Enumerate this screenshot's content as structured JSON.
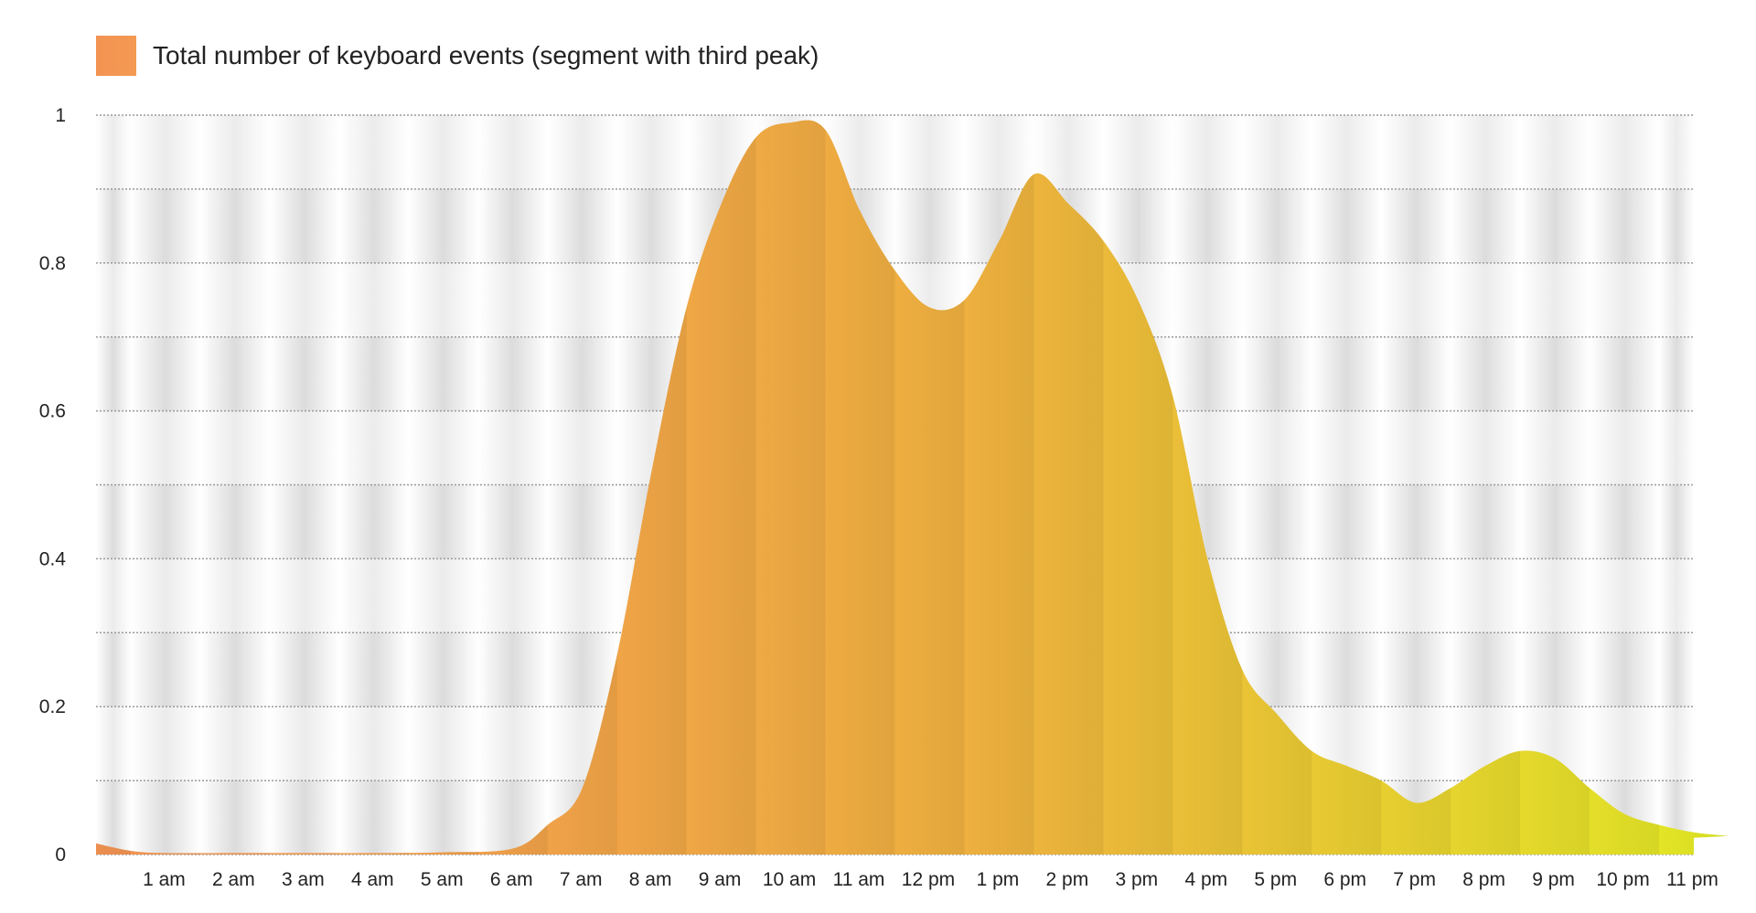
{
  "legend": {
    "label": "Total number of keyboard events (segment with third peak)",
    "swatch_color": "#f39a53"
  },
  "colors": {
    "gradient_start": "#f39353",
    "gradient_mid": "#eeb13e",
    "gradient_end": "#e2e924",
    "stripe_dark": "#dcdcdc",
    "stripe_light": "#ffffff",
    "grid_line": "#9a9a9a"
  },
  "chart_data": {
    "type": "area",
    "title": "",
    "xlabel": "",
    "ylabel": "",
    "ylim": [
      0,
      1
    ],
    "yticks": [
      "0",
      "0.2",
      "0.4",
      "0.6",
      "0.8",
      "1"
    ],
    "x_tick_labels": [
      "1 am",
      "2 am",
      "3 am",
      "4 am",
      "5 am",
      "6 am",
      "7 am",
      "8 am",
      "9 am",
      "10 am",
      "11 am",
      "12 pm",
      "1 pm",
      "2 pm",
      "3 pm",
      "4 pm",
      "5 pm",
      "6 pm",
      "7 pm",
      "8 pm",
      "9 pm",
      "10 pm",
      "11 pm"
    ],
    "grid": true,
    "legend_position": "top-left",
    "series": [
      {
        "name": "Total number of keyboard events (segment with third peak)",
        "x_hours": [
          0,
          0.5,
          1,
          2,
          3,
          4,
          5,
          6,
          6.5,
          7,
          7.5,
          8,
          8.5,
          9,
          9.5,
          10,
          10.5,
          11,
          11.5,
          12,
          12.5,
          13,
          13.5,
          14,
          14.5,
          15,
          15.5,
          16,
          16.5,
          17,
          17.5,
          18,
          18.5,
          19,
          19.5,
          20,
          20.5,
          21,
          21.5,
          22,
          22.5,
          23,
          23.5
        ],
        "values": [
          0.015,
          0.005,
          0.002,
          0.002,
          0.002,
          0.002,
          0.003,
          0.008,
          0.04,
          0.09,
          0.27,
          0.52,
          0.74,
          0.88,
          0.97,
          0.99,
          0.98,
          0.87,
          0.79,
          0.74,
          0.75,
          0.83,
          0.92,
          0.88,
          0.83,
          0.75,
          0.62,
          0.4,
          0.25,
          0.19,
          0.14,
          0.12,
          0.1,
          0.07,
          0.09,
          0.12,
          0.14,
          0.13,
          0.09,
          0.055,
          0.04,
          0.03,
          0.025
        ]
      }
    ]
  }
}
